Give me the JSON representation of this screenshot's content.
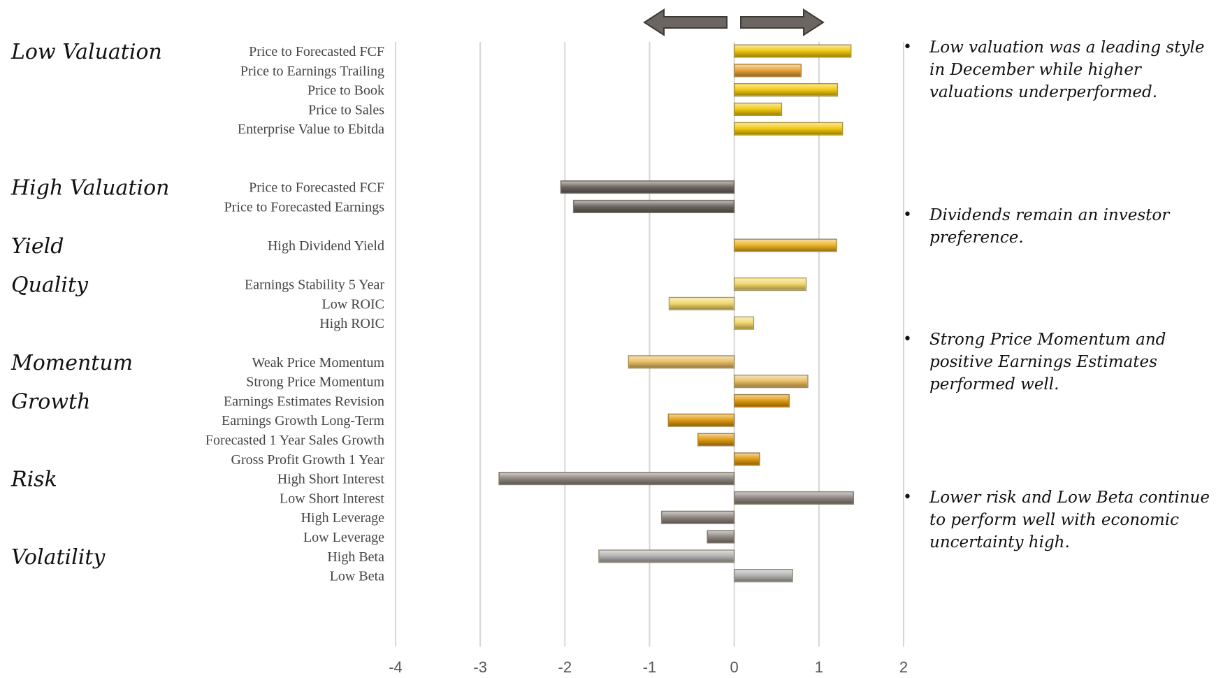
{
  "chart_data": {
    "type": "bar",
    "orientation": "horizontal",
    "xlim": [
      -4,
      2
    ],
    "xticks": [
      "-4",
      "-3",
      "-2",
      "-1",
      "0",
      "1",
      "2"
    ],
    "grid": true,
    "groups": [
      {
        "name": "Low Valuation",
        "color": "#f2c80f",
        "items": [
          {
            "label": "Price to Forecasted FCF",
            "value": 1.38
          },
          {
            "label": "Price to Earnings Trailing",
            "value": 0.79,
            "color": "#e8a33a"
          },
          {
            "label": "Price to Book",
            "value": 1.22
          },
          {
            "label": "Price to Sales",
            "value": 0.56
          },
          {
            "label": "Enterprise Value to Ebitda",
            "value": 1.28
          }
        ]
      },
      {
        "name": "High Valuation",
        "color": "#6e6760",
        "items": [
          {
            "label": "Price to Forecasted FCF",
            "value": -2.05
          },
          {
            "label": "Price to Forecasted Earnings",
            "value": -1.9
          }
        ]
      },
      {
        "name": "Yield",
        "color": "#edb425",
        "items": [
          {
            "label": "High Dividend Yield",
            "value": 1.21
          }
        ]
      },
      {
        "name": "Quality",
        "color": "#f3d76a",
        "items": [
          {
            "label": "Earnings Stability 5 Year",
            "value": 0.85
          },
          {
            "label": "Low ROIC",
            "value": -0.77
          },
          {
            "label": "High ROIC",
            "value": 0.23
          }
        ]
      },
      {
        "name": "Momentum",
        "color": "#e9be62",
        "items": [
          {
            "label": "Weak Price Momentum",
            "value": -1.25
          },
          {
            "label": "Strong Price Momentum",
            "value": 0.87
          }
        ]
      },
      {
        "name": "Growth",
        "color": "#e19a10",
        "items": [
          {
            "label": "Earnings Estimates Revision",
            "value": 0.65
          },
          {
            "label": "Earnings Growth Long-Term",
            "value": -0.78
          },
          {
            "label": "Forecasted 1 Year Sales Growth",
            "value": -0.43
          },
          {
            "label": "Gross Profit Growth 1 Year",
            "value": 0.3
          }
        ]
      },
      {
        "name": "Risk",
        "color": "#8f8781",
        "items": [
          {
            "label": "High Short Interest",
            "value": -2.78
          },
          {
            "label": "Low Short Interest",
            "value": 1.41
          },
          {
            "label": "High Leverage",
            "value": -0.86
          },
          {
            "label": "Low Leverage",
            "value": -0.32
          }
        ]
      },
      {
        "name": "Volatility",
        "color": "#b4b2b0",
        "items": [
          {
            "label": "High Beta",
            "value": -1.6
          },
          {
            "label": "Low Beta",
            "value": 0.69
          }
        ]
      }
    ]
  },
  "bullets": [
    "Low valuation was a leading style in December while higher valuations underperformed.",
    "Dividends remain an investor preference.",
    "Strong Price Momentum and positive  Earnings Estimates performed well.",
    "Lower risk and Low Beta continue to perform well with economic uncertainty high."
  ],
  "bullet_symbol": "•",
  "arrow_color": "#6b6661"
}
